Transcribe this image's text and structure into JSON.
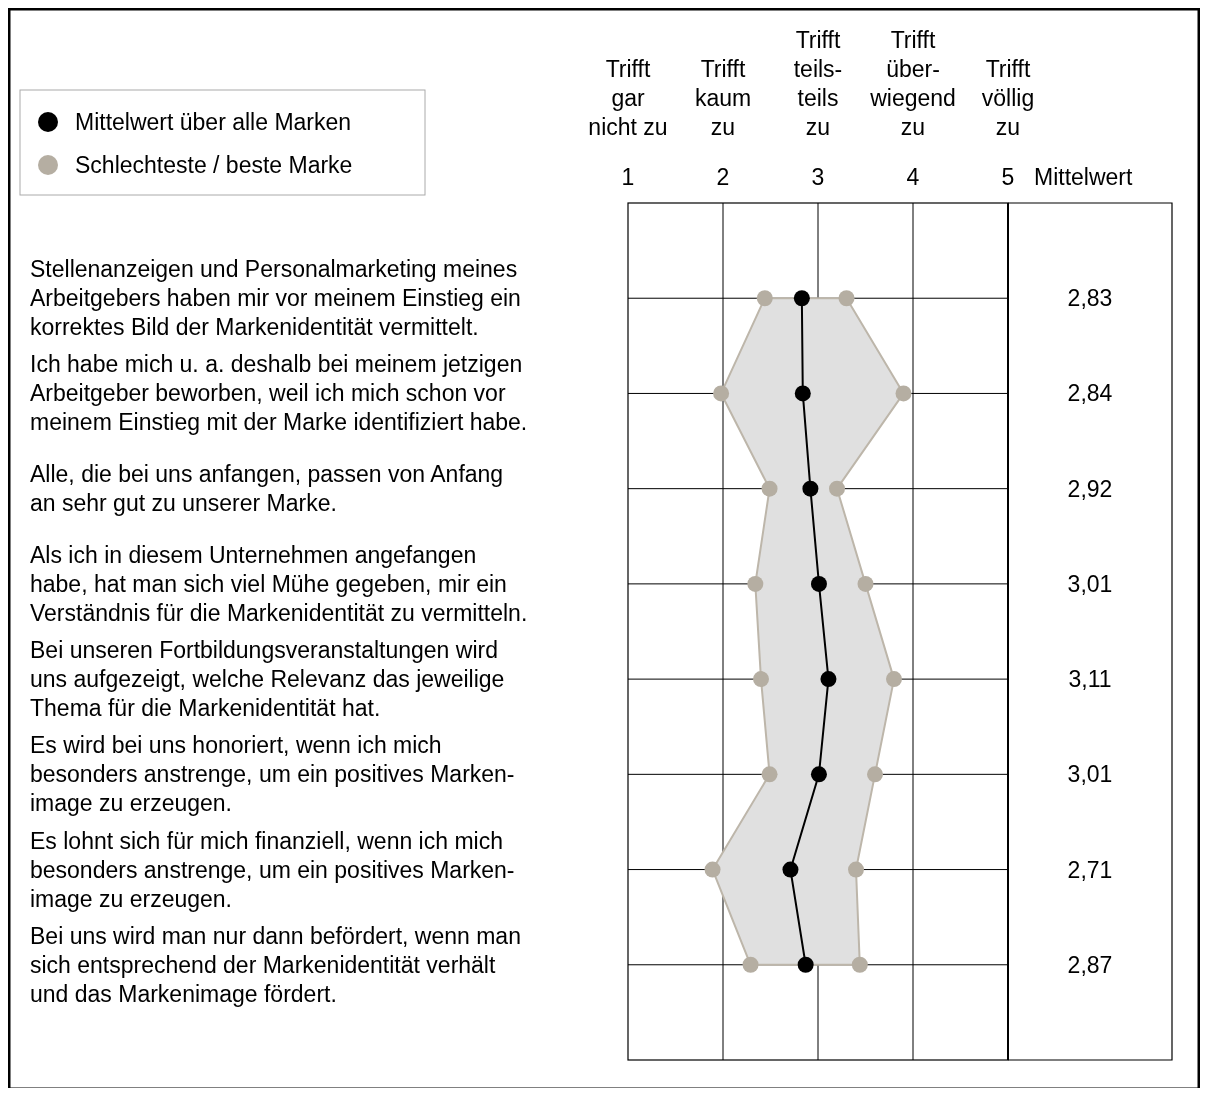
{
  "chart_data": {
    "type": "line",
    "orientation": "horizontal",
    "categories": [
      "Stellenanzeigen und Personalmarketing meines\nArbeitgebers haben mir vor meinem Einstieg ein\nkorrektes Bild der Markenidentität vermittelt.",
      "Ich habe mich u. a. deshalb bei meinem jetzigen\nArbeitgeber beworben, weil ich mich schon vor\nmeinem Einstieg mit der Marke identifiziert habe.",
      "Alle, die bei uns anfangen, passen von Anfang\nan sehr gut zu unserer Marke.",
      "Als ich in diesem Unternehmen angefangen\nhabe, hat man sich viel Mühe gegeben, mir ein\nVerständnis für die Markenidentität zu vermitteln.",
      "Bei unseren Fortbildungsveranstaltungen wird\nuns aufgezeigt, welche Relevanz das jeweilige\nThema für die Markenidentität hat.",
      "Es wird bei uns honoriert, wenn ich mich\nbesonders anstrenge, um ein positives Marken-\nimage zu erzeugen.",
      "Es lohnt sich für mich finanziell, wenn ich mich\nbesonders anstrenge, um ein positives Marken-\nimage zu erzeugen.",
      "Bei uns wird man nur dann befördert, wenn man\nsich entsprechend der Markenidentität verhält\nund das Markenimage fördert."
    ],
    "series": [
      {
        "name": "Mittelwert über alle Marken",
        "color": "#000000",
        "values": [
          2.83,
          2.84,
          2.92,
          3.01,
          3.11,
          3.01,
          2.71,
          2.87
        ],
        "lower": [
          2.44,
          1.98,
          2.49,
          2.34,
          2.4,
          2.49,
          1.89,
          2.29
        ],
        "upper": [
          3.3,
          3.9,
          3.2,
          3.5,
          3.8,
          3.6,
          3.4,
          3.44
        ],
        "value_labels": [
          "2,83",
          "2,84",
          "2,92",
          "3,01",
          "3,11",
          "3,01",
          "2,71",
          "2,87"
        ]
      },
      {
        "name": "Schlechteste / beste Marke",
        "type": "scatter",
        "color": "#b5aea2",
        "values": [
          2.44,
          1.98,
          2.49,
          2.34,
          2.4,
          2.49,
          1.89,
          2.29
        ]
      },
      {
        "type": "scatter",
        "color": "#b5aea2",
        "values": [
          3.3,
          3.9,
          3.2,
          3.5,
          3.8,
          3.6,
          3.4,
          3.44
        ]
      }
    ],
    "xlim": [
      1,
      5
    ],
    "xticks": [
      1,
      2,
      3,
      4,
      5
    ],
    "annotations": [
      "Mittelwert",
      "Trifft\ngar\nnicht zu",
      "Trifft\nkaum\nzu",
      "Trifft\nteils-\nteils\nzu",
      "Trifft\nüber-\nwiegend\nzu",
      "Trifft\nvöllig\nzu"
    ],
    "grid": true,
    "legend": "top left",
    "marker": "circle",
    "line_style": "solid"
  }
}
